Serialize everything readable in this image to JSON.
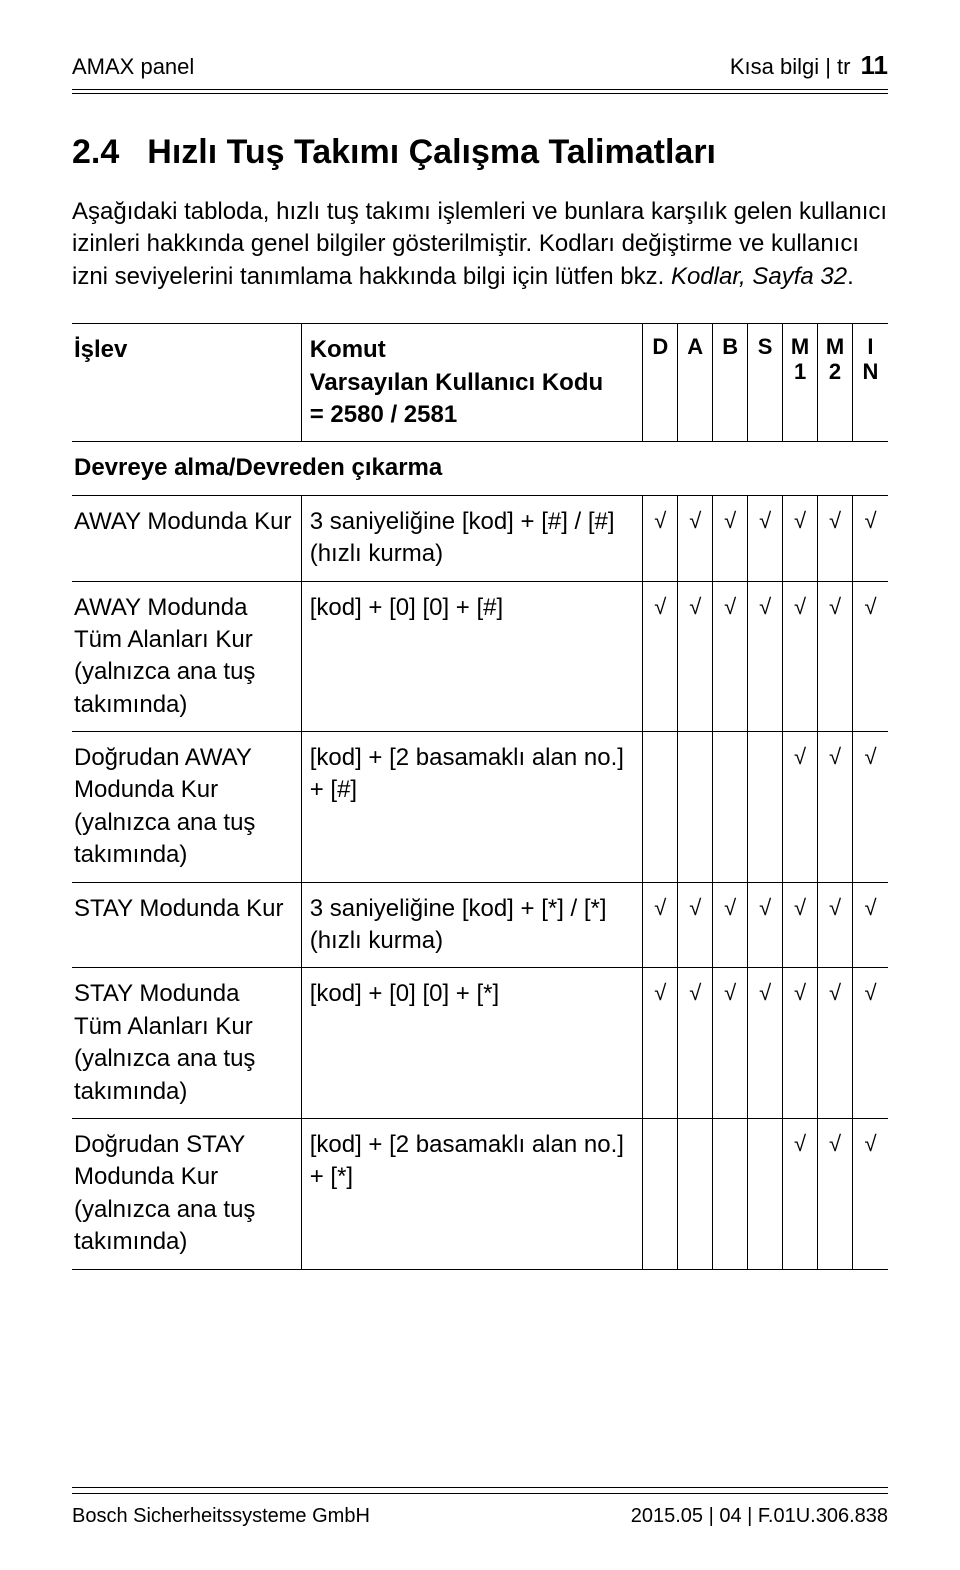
{
  "header": {
    "left": "AMAX panel",
    "meta": "Kısa bilgi | tr",
    "pageNumber": "11"
  },
  "section": {
    "num": "2.4",
    "title": "Hızlı Tuş Takımı Çalışma Talimatları"
  },
  "intro": {
    "p1": "Aşağıdaki tabloda, hızlı tuş takımı işlemleri ve bunlara karşılık gelen kullanıcı izinleri hakkında genel bilgiler gösterilmiştir. Kodları değiştirme ve kullanıcı izni seviyelerini tanımlama hakkında bilgi için lütfen bkz.",
    "ref": "Kodlar, Sayfa 32",
    "dot": "."
  },
  "table": {
    "head": {
      "func": "İşlev",
      "cmdLine1": "Komut",
      "cmdLine2": "Varsayılan Kullanıcı Kodu",
      "cmdLine3": "= 2580 / 2581",
      "perms": [
        {
          "top": "D",
          "bot": ""
        },
        {
          "top": "A",
          "bot": ""
        },
        {
          "top": "B",
          "bot": ""
        },
        {
          "top": "S",
          "bot": ""
        },
        {
          "top": "M",
          "bot": "1"
        },
        {
          "top": "M",
          "bot": "2"
        },
        {
          "top": "I",
          "bot": "N"
        }
      ]
    },
    "sectionRow": "Devreye alma/Devreden çıkarma",
    "rows": [
      {
        "func": "AWAY Modunda Kur",
        "cmd": "3 saniyeliğine [kod] + [#] / [#] (hızlı kurma)",
        "perms": [
          "√",
          "√",
          "√",
          "√",
          "√",
          "√",
          "√"
        ]
      },
      {
        "func": "AWAY Modunda Tüm Alanları Kur (yalnızca ana tuş takımında)",
        "cmd": "[kod] + [0] [0] + [#]",
        "perms": [
          "√",
          "√",
          "√",
          "√",
          "√",
          "√",
          "√"
        ]
      },
      {
        "func": "Doğrudan AWAY Modunda Kur (yalnızca ana tuş takımında)",
        "cmd": "[kod] + [2 basamaklı alan no.] + [#]",
        "perms": [
          "",
          "",
          "",
          "",
          "√",
          "√",
          "√"
        ]
      },
      {
        "func": "STAY Modunda Kur",
        "cmd": "3 saniyeliğine [kod] + [*] / [*] (hızlı kurma)",
        "perms": [
          "√",
          "√",
          "√",
          "√",
          "√",
          "√",
          "√"
        ]
      },
      {
        "func": "STAY Modunda Tüm Alanları Kur (yalnızca ana tuş takımında)",
        "cmd": "[kod] + [0] [0] + [*]",
        "perms": [
          "√",
          "√",
          "√",
          "√",
          "√",
          "√",
          "√"
        ]
      },
      {
        "func": "Doğrudan STAY Modunda Kur (yalnızca ana tuş takımında)",
        "cmd": "[kod] + [2 basamaklı alan no.] + [*]",
        "perms": [
          "",
          "",
          "",
          "",
          "√",
          "√",
          "√"
        ]
      }
    ]
  },
  "footer": {
    "left": "Bosch Sicherheitssysteme GmbH",
    "right": "2015.05 | 04 | F.01U.306.838"
  },
  "style": {
    "tick": "√"
  }
}
